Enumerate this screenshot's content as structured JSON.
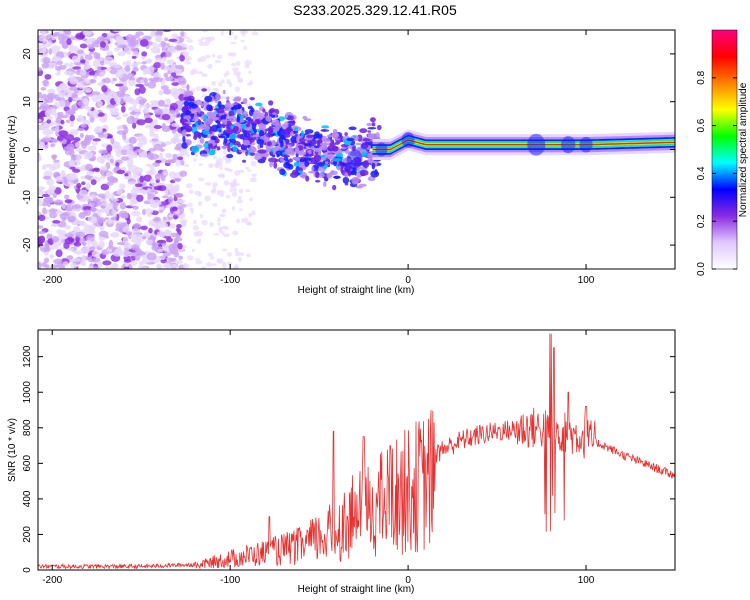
{
  "title": "S233.2025.329.12.41.R05",
  "chart_data": [
    {
      "type": "heatmap",
      "xlabel": "Height of straight line (km)",
      "ylabel": "Frequency (Hz)",
      "xlim": [
        -208,
        150
      ],
      "ylim": [
        -25,
        25
      ],
      "xticks": [
        -200,
        -100,
        0,
        100
      ],
      "yticks": [
        -20,
        -10,
        0,
        10,
        20
      ],
      "colorbar": {
        "label": "Normalized spectral amplitude",
        "range": [
          0,
          1
        ],
        "ticks": [
          "0.0",
          "0.2",
          "0.4",
          "0.6",
          "0.8"
        ],
        "tick_values": [
          0,
          0.2,
          0.4,
          0.6,
          0.8
        ],
        "colors": [
          "#ffffff",
          "#e0c8ff",
          "#8a2be2",
          "#0000ff",
          "#00ffff",
          "#00ff00",
          "#ffff00",
          "#ff8000",
          "#ff0000",
          "#ff0080"
        ]
      },
      "ridge": [
        {
          "x": -200,
          "y": 5
        },
        {
          "x": -150,
          "y": 4
        },
        {
          "x": -120,
          "y": 6
        },
        {
          "x": -100,
          "y": 5
        },
        {
          "x": -80,
          "y": 3
        },
        {
          "x": -60,
          "y": 0
        },
        {
          "x": -40,
          "y": -1
        },
        {
          "x": -30,
          "y": -2
        },
        {
          "x": -20,
          "y": 0
        },
        {
          "x": -10,
          "y": 0
        },
        {
          "x": 0,
          "y": 2
        },
        {
          "x": 10,
          "y": 1
        },
        {
          "x": 30,
          "y": 1
        },
        {
          "x": 60,
          "y": 1
        },
        {
          "x": 100,
          "y": 1
        },
        {
          "x": 150,
          "y": 1.5
        }
      ]
    },
    {
      "type": "line",
      "xlabel": "Height of straight line (km)",
      "ylabel": "SNR (10 * v/v)",
      "xlim": [
        -208,
        150
      ],
      "ylim": [
        0,
        1350
      ],
      "xticks": [
        -200,
        -100,
        0,
        100
      ],
      "yticks": [
        0,
        200,
        400,
        600,
        800,
        1000,
        1200
      ],
      "color": "#e83030",
      "envelope": [
        {
          "x": -208,
          "y": 20
        },
        {
          "x": -150,
          "y": 20
        },
        {
          "x": -120,
          "y": 30
        },
        {
          "x": -100,
          "y": 80
        },
        {
          "x": -80,
          "y": 120
        },
        {
          "x": -60,
          "y": 170
        },
        {
          "x": -40,
          "y": 280
        },
        {
          "x": -30,
          "y": 380
        },
        {
          "x": -20,
          "y": 430
        },
        {
          "x": -10,
          "y": 500
        },
        {
          "x": 0,
          "y": 560
        },
        {
          "x": 10,
          "y": 620
        },
        {
          "x": 20,
          "y": 680
        },
        {
          "x": 30,
          "y": 730
        },
        {
          "x": 40,
          "y": 760
        },
        {
          "x": 50,
          "y": 780
        },
        {
          "x": 60,
          "y": 790
        },
        {
          "x": 70,
          "y": 800
        },
        {
          "x": 80,
          "y": 790
        },
        {
          "x": 90,
          "y": 770
        },
        {
          "x": 100,
          "y": 740
        },
        {
          "x": 110,
          "y": 700
        },
        {
          "x": 120,
          "y": 650
        },
        {
          "x": 130,
          "y": 610
        },
        {
          "x": 140,
          "y": 570
        },
        {
          "x": 150,
          "y": 530
        }
      ],
      "peaks": [
        {
          "x": -78,
          "y": 300
        },
        {
          "x": -42,
          "y": 780
        },
        {
          "x": -25,
          "y": 750
        },
        {
          "x": -10,
          "y": 700
        },
        {
          "x": 80,
          "y": 1330
        },
        {
          "x": 82,
          "y": 1250
        },
        {
          "x": 90,
          "y": 1000
        },
        {
          "x": 100,
          "y": 920
        }
      ]
    }
  ]
}
